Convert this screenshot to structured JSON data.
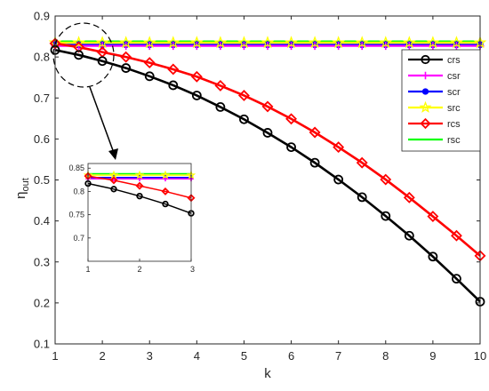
{
  "chart_data": [
    {
      "type": "line",
      "xlabel": "k",
      "ylabel": "η",
      "ylabel_subscript": "out",
      "xlim": [
        1,
        10
      ],
      "ylim": [
        0.1,
        0.9
      ],
      "xticks": [
        "1",
        "2",
        "3",
        "4",
        "5",
        "6",
        "7",
        "8",
        "9",
        "10"
      ],
      "yticks": [
        "0.1",
        "0.2",
        "0.3",
        "0.4",
        "0.5",
        "0.6",
        "0.7",
        "0.8",
        "0.9"
      ],
      "grid": false,
      "legend_position": "top-right",
      "x": [
        1,
        1.5,
        2,
        2.5,
        3,
        3.5,
        4,
        4.5,
        5,
        5.5,
        6,
        6.5,
        7,
        7.5,
        8,
        8.5,
        9,
        9.5,
        10
      ],
      "series": [
        {
          "name": "crs",
          "color": "#000000",
          "marker": "circle",
          "values": [
            0.817,
            0.805,
            0.79,
            0.773,
            0.753,
            0.731,
            0.706,
            0.678,
            0.648,
            0.615,
            0.58,
            0.542,
            0.501,
            0.458,
            0.412,
            0.364,
            0.313,
            0.259,
            0.203
          ]
        },
        {
          "name": "csr",
          "color": "#ff00ff",
          "marker": "plus",
          "values": [
            0.827,
            0.827,
            0.827,
            0.827,
            0.827,
            0.827,
            0.827,
            0.827,
            0.827,
            0.827,
            0.827,
            0.827,
            0.827,
            0.827,
            0.827,
            0.827,
            0.827,
            0.827,
            0.827
          ]
        },
        {
          "name": "scr",
          "color": "#0000ff",
          "marker": "dot",
          "values": [
            0.83,
            0.83,
            0.83,
            0.83,
            0.83,
            0.83,
            0.83,
            0.83,
            0.83,
            0.83,
            0.83,
            0.83,
            0.83,
            0.83,
            0.83,
            0.83,
            0.83,
            0.83,
            0.83
          ]
        },
        {
          "name": "src",
          "color": "#ffff00",
          "marker": "star",
          "values": [
            0.835,
            0.835,
            0.835,
            0.835,
            0.835,
            0.835,
            0.835,
            0.835,
            0.835,
            0.835,
            0.835,
            0.835,
            0.835,
            0.835,
            0.835,
            0.835,
            0.835,
            0.835,
            0.835
          ]
        },
        {
          "name": "rcs",
          "color": "#ff0000",
          "marker": "diamond",
          "values": [
            0.833,
            0.824,
            0.812,
            0.8,
            0.786,
            0.77,
            0.752,
            0.73,
            0.706,
            0.679,
            0.649,
            0.616,
            0.58,
            0.542,
            0.501,
            0.457,
            0.411,
            0.364,
            0.315
          ]
        },
        {
          "name": "rsc",
          "color": "#00ff00",
          "marker": "none",
          "values": [
            0.838,
            0.838,
            0.838,
            0.838,
            0.838,
            0.838,
            0.838,
            0.838,
            0.838,
            0.838,
            0.838,
            0.838,
            0.838,
            0.838,
            0.838,
            0.838,
            0.838,
            0.838,
            0.838
          ]
        }
      ]
    },
    {
      "type": "line",
      "role": "inset-zoom",
      "xlim": [
        1,
        3
      ],
      "ylim": [
        0.65,
        0.86
      ],
      "xticks": [
        "1",
        "2",
        "3"
      ],
      "yticks": [
        "0.7",
        "0.75",
        "0.8",
        "0.85"
      ]
    }
  ]
}
